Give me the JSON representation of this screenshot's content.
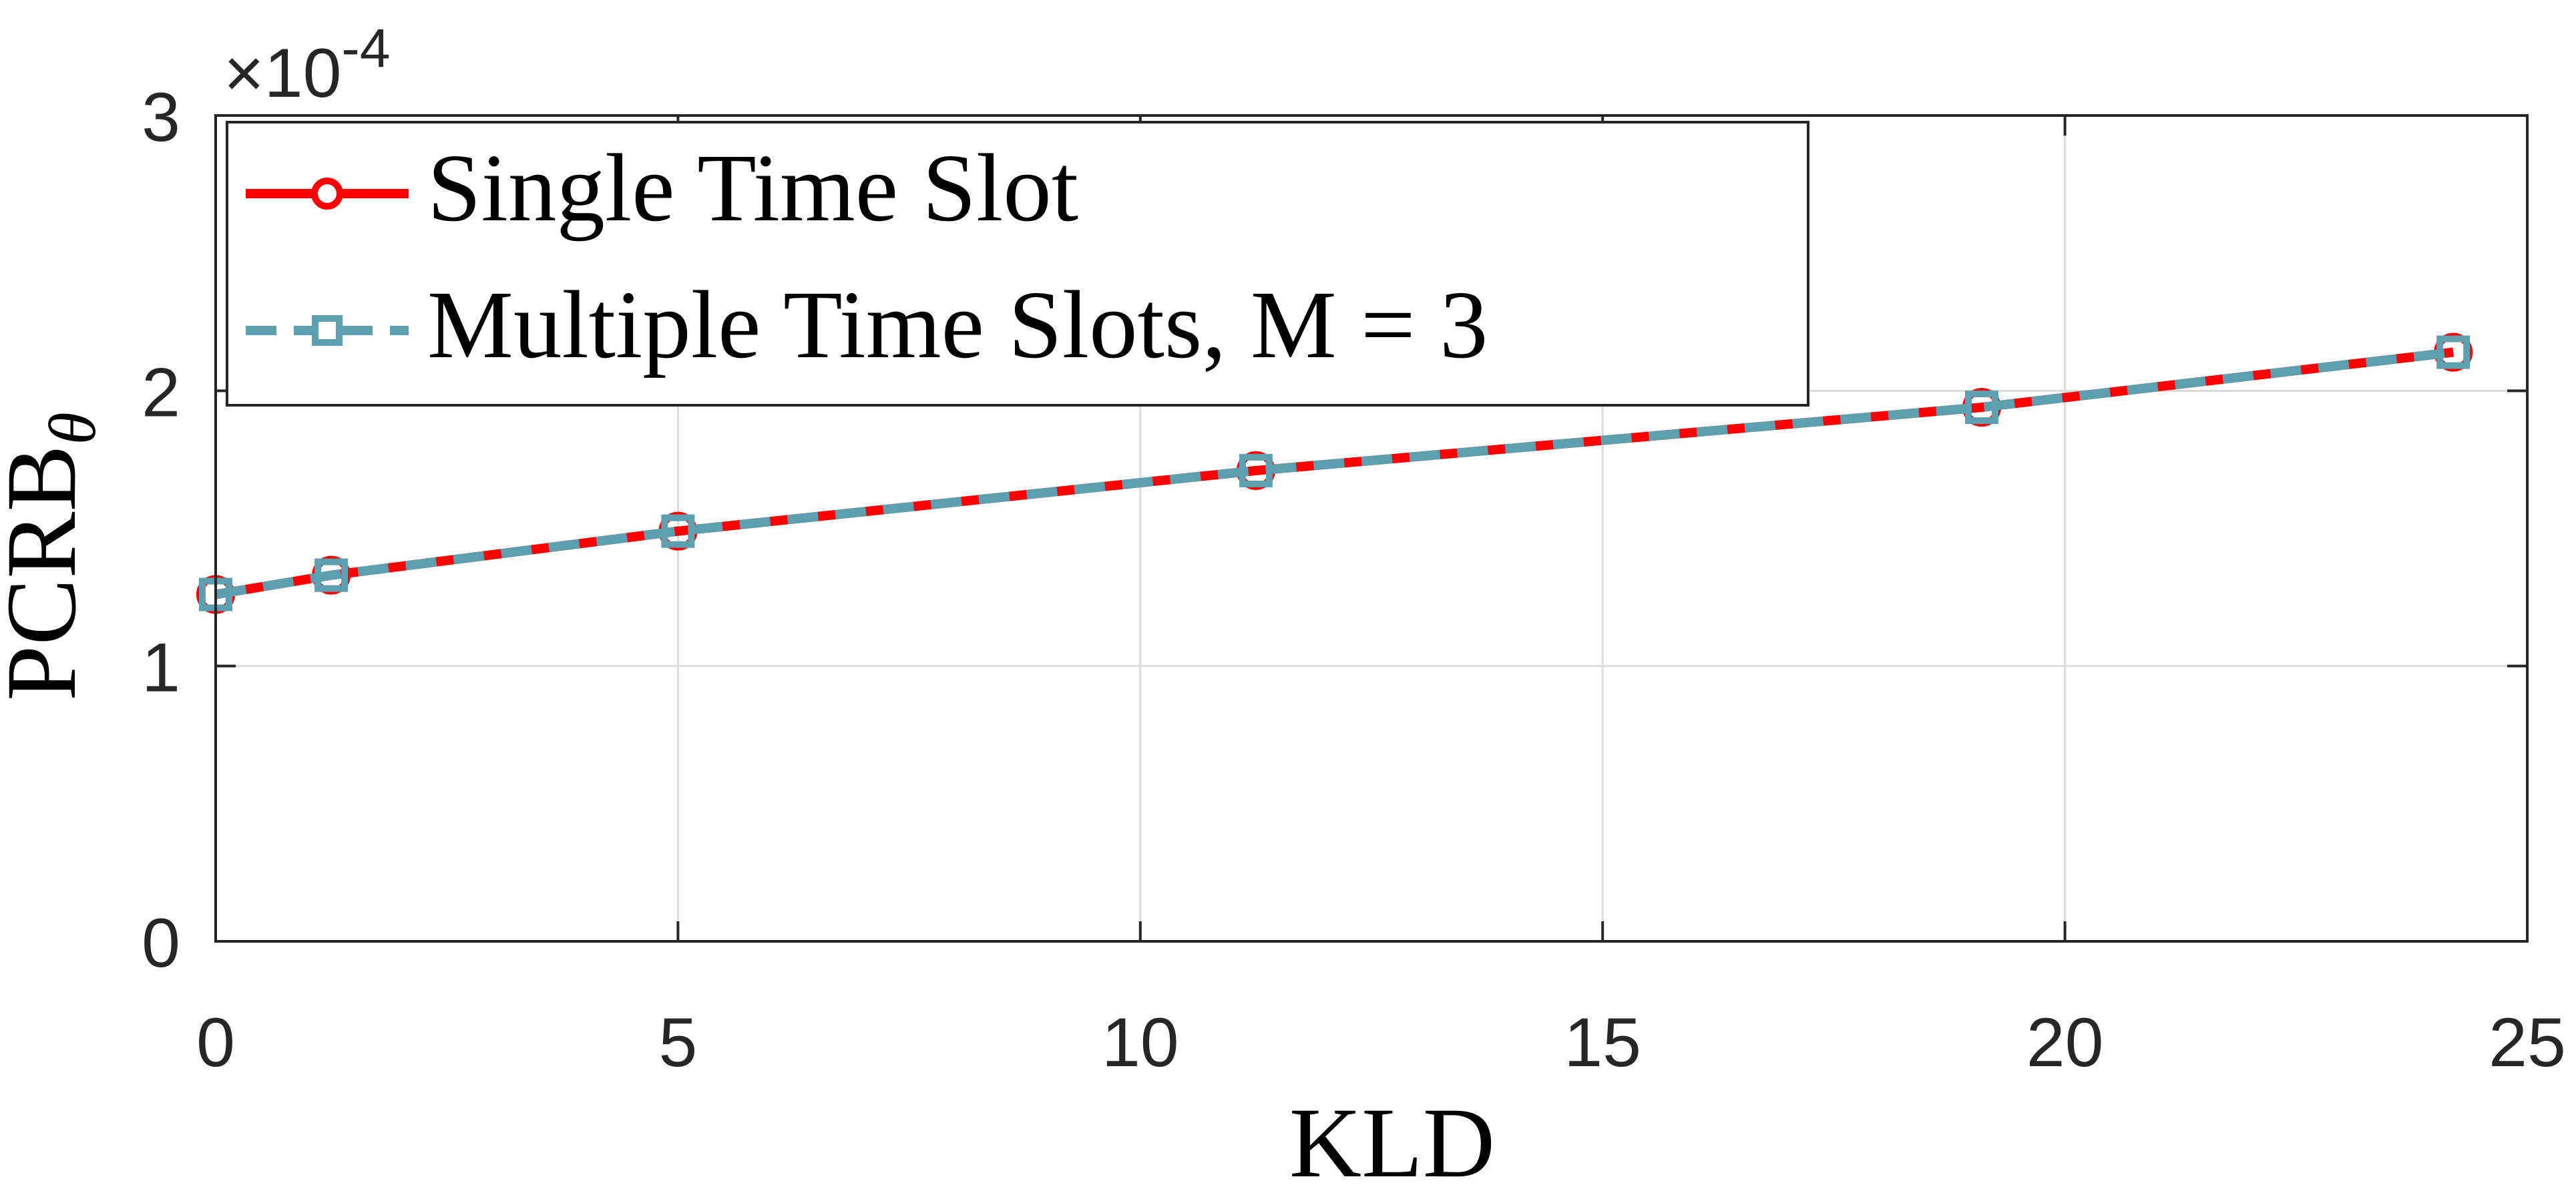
{
  "chart_data": {
    "type": "line",
    "xlabel": "KLD",
    "ylabel": "PCRB",
    "ylabel_sub": "θ",
    "y_exponent_text": "×10",
    "y_exponent_power": "-4",
    "xlim": [
      0,
      25
    ],
    "ylim": [
      0,
      3
    ],
    "x_ticks": [
      0,
      5,
      10,
      15,
      20,
      25
    ],
    "y_ticks": [
      0,
      1,
      2,
      3
    ],
    "grid": true,
    "legend_position": "top-left",
    "colors": {
      "series_1": "#ff0000",
      "series_2": "#5b9fb0",
      "axis": "#262626"
    },
    "series": [
      {
        "name": "Single Time Slot",
        "marker": "circle",
        "line_style": "solid",
        "x": [
          0,
          1.25,
          5,
          11.25,
          19.1,
          24.2
        ],
        "y": [
          1.26,
          1.33,
          1.49,
          1.71,
          1.94,
          2.14
        ]
      },
      {
        "name": "Multiple Time Slots, M = 3",
        "marker": "square",
        "line_style": "dashed",
        "x": [
          0,
          1.25,
          5,
          11.25,
          19.1,
          24.2
        ],
        "y": [
          1.26,
          1.33,
          1.49,
          1.71,
          1.94,
          2.14
        ]
      }
    ]
  }
}
